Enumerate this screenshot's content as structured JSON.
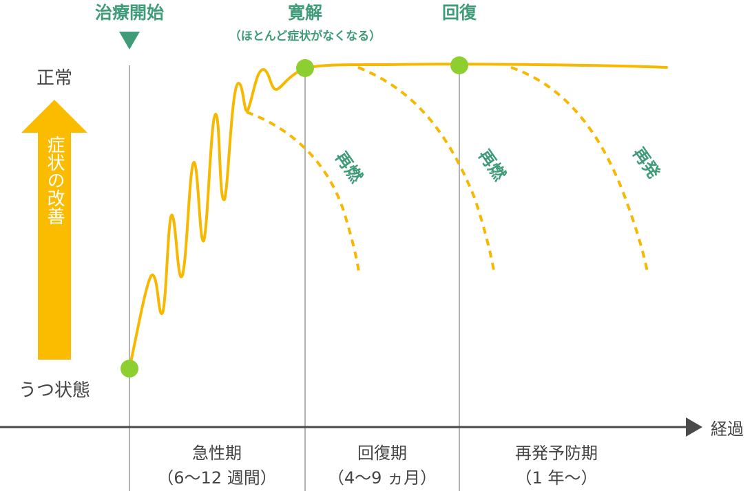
{
  "milestones": {
    "treatment_start": "治療開始",
    "remission": "寛解",
    "remission_note": "（ほとんど症状がなくなる）",
    "recovery": "回復"
  },
  "y_axis": {
    "top_label": "正常",
    "bottom_label": "うつ状態",
    "arrow_label": "症状の改善"
  },
  "x_axis": {
    "label": "経過"
  },
  "phases": [
    {
      "name": "急性期",
      "duration": "（6〜12 週間）"
    },
    {
      "name": "回復期",
      "duration": "（4〜9 ヵ月）"
    },
    {
      "name": "再発予防期",
      "duration": "（1 年〜）"
    }
  ],
  "relapse_labels": {
    "first": "再燃",
    "second": "再燃",
    "third": "再発"
  },
  "colors": {
    "curve": "#f6b800",
    "arrow": "#fbbc00",
    "dot": "#8ccf2f",
    "green_text": "#3f9b78",
    "marker": "#3f9b78",
    "axis": "#4a4a4a",
    "divider": "#9a9a9a"
  }
}
